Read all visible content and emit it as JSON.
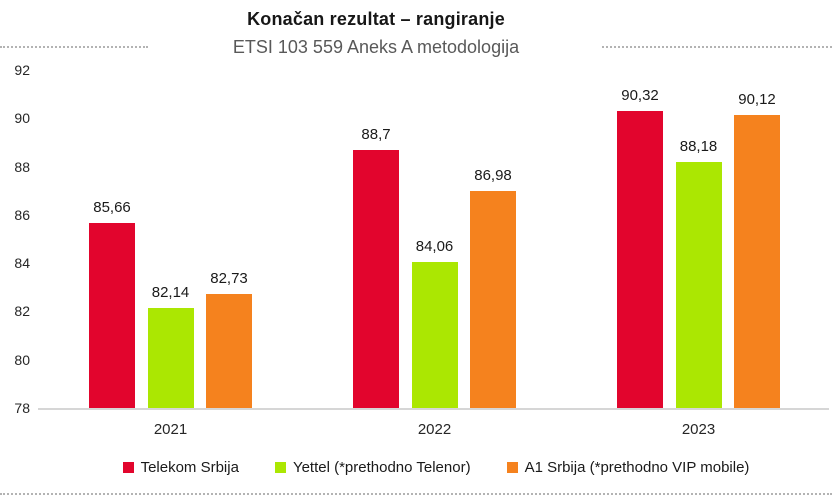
{
  "title": "Konačan rezultat – rangiranje",
  "subtitle": "ETSI 103 559 Aneks A metodologija",
  "chart_data": {
    "type": "bar",
    "title": "Konačan rezultat – rangiranje",
    "subtitle": "ETSI 103 559 Aneks A metodologija",
    "categories": [
      "2021",
      "2022",
      "2023"
    ],
    "series": [
      {
        "name": "Telekom Srbija",
        "color": "#e2052d",
        "values": [
          85.66,
          88.7,
          90.32
        ],
        "value_labels": [
          "85,66",
          "88,7",
          "90,32"
        ]
      },
      {
        "name": "Yettel (*prethodno Telenor)",
        "color": "#abe702",
        "values": [
          82.14,
          84.06,
          88.18
        ],
        "value_labels": [
          "82,14",
          "84,06",
          "88,18"
        ]
      },
      {
        "name": "A1 Srbija (*prethodno VIP mobile)",
        "color": "#f5821e",
        "values": [
          82.73,
          86.98,
          90.12
        ],
        "value_labels": [
          "82,73",
          "86,98",
          "90,12"
        ]
      }
    ],
    "ylim": [
      78,
      92
    ],
    "yticks": [
      78,
      80,
      82,
      84,
      86,
      88,
      90,
      92
    ],
    "grid": false,
    "legend_position": "bottom",
    "value_labels_shown": true,
    "colors": {
      "axis_line": "#d6d6d6",
      "dotted_decoration": "#b3b3b3",
      "subtitle_text": "#595959",
      "title_text": "#171717"
    }
  }
}
